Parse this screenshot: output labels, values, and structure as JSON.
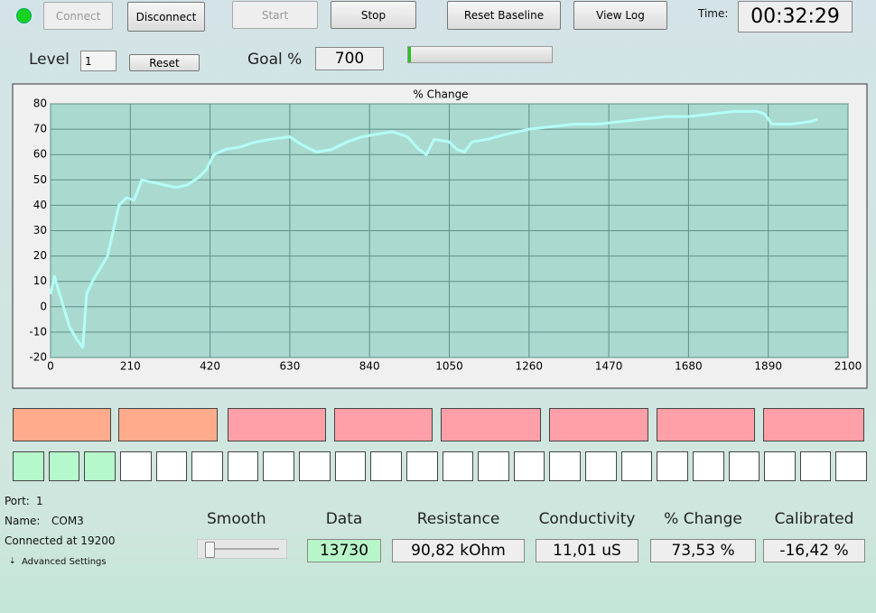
{
  "toolbar": {
    "buttons": [
      "Connect",
      "Disconnect",
      "Start",
      "Stop",
      "Reset Baseline",
      "View Log"
    ],
    "time_label": "Time:",
    "time": "00:32:29"
  },
  "level": {
    "label": "Level",
    "value": "1",
    "button": "Reset"
  },
  "goal": {
    "label": "Goal %",
    "value": "700"
  },
  "chart_data": {
    "type": "line",
    "title": "% Change",
    "color": "#b4fff8",
    "grid": true,
    "x": [
      0,
      10,
      30,
      50,
      70,
      85,
      95,
      110,
      130,
      150,
      165,
      180,
      200,
      220,
      240,
      270,
      300,
      330,
      360,
      390,
      410,
      430,
      460,
      500,
      540,
      580,
      630,
      660,
      700,
      740,
      780,
      820,
      860,
      900,
      940,
      970,
      990,
      1010,
      1050,
      1070,
      1090,
      1110,
      1150,
      1200,
      1260,
      1320,
      1380,
      1440,
      1500,
      1560,
      1620,
      1680,
      1740,
      1800,
      1860,
      1880,
      1900,
      1950,
      2000,
      2020
    ],
    "values": [
      5,
      12,
      2,
      -8,
      -13,
      -16,
      5,
      10,
      15,
      20,
      30,
      40,
      43,
      42,
      50,
      49,
      48,
      47,
      48,
      51,
      54,
      60,
      62,
      63,
      65,
      66,
      67,
      64,
      61,
      62,
      65,
      67,
      68,
      69,
      67,
      62,
      60,
      66,
      65,
      62,
      61,
      65,
      66,
      68,
      70,
      71,
      72,
      72,
      73,
      74,
      75,
      75,
      76,
      77,
      77,
      76,
      72,
      72,
      73,
      74
    ],
    "xlim": [
      0,
      2100
    ],
    "ylim": [
      -20,
      80
    ],
    "xticks": [
      0,
      210,
      420,
      630,
      840,
      1050,
      1260,
      1470,
      1680,
      1890,
      2100
    ],
    "yticks": [
      -20,
      -10,
      0,
      10,
      20,
      30,
      40,
      50,
      60,
      70,
      80
    ]
  },
  "connection": {
    "port_label": "Port:",
    "port": "1",
    "name_label": "Name:",
    "name": "COM3",
    "status": "Connected at 19200",
    "advanced": "Advanced Settings"
  },
  "smooth": {
    "label": "Smooth"
  },
  "readouts": [
    {
      "label": "Data",
      "value": "13730"
    },
    {
      "label": "Resistance",
      "value": "90,82 kOhm"
    },
    {
      "label": "Conductivity",
      "value": "11,01 uS"
    },
    {
      "label": "% Change",
      "value": "73,53 %"
    },
    {
      "label": "Calibrated",
      "value": "-16,42 %"
    }
  ]
}
